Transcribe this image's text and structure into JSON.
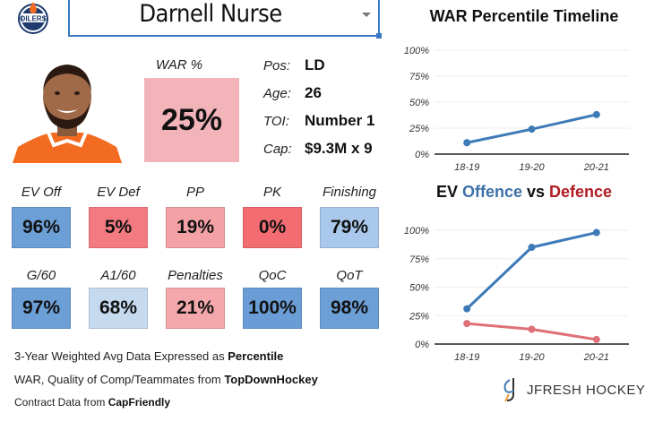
{
  "header": {
    "team_logo": "oilers-logo-icon",
    "player_select_value": "Darnell Nurse"
  },
  "player": {
    "photo": "player-headshot",
    "war_label": "WAR %",
    "war_value": "25%",
    "war_color": "#f2b4b8",
    "info": [
      {
        "key": "Pos:",
        "value": "LD"
      },
      {
        "key": "Age:",
        "value": "26"
      },
      {
        "key": "TOI:",
        "value": "Number 1"
      },
      {
        "key": "Cap:",
        "value": "$9.3M x 9"
      }
    ]
  },
  "tiles_row1": [
    {
      "label": "EV Off",
      "value": "96%",
      "color": "#6b9fd6"
    },
    {
      "label": "EV Def",
      "value": "5%",
      "color": "#f37a80"
    },
    {
      "label": "PP",
      "value": "19%",
      "color": "#f4a1a6"
    },
    {
      "label": "PK",
      "value": "0%",
      "color": "#f26c72"
    },
    {
      "label": "Finishing",
      "value": "79%",
      "color": "#a9c8eb"
    }
  ],
  "tiles_row2": [
    {
      "label": "G/60",
      "value": "97%",
      "color": "#6b9fd6"
    },
    {
      "label": "A1/60",
      "value": "68%",
      "color": "#c5d9ef"
    },
    {
      "label": "Penalties",
      "value": "21%",
      "color": "#f4a8ac"
    },
    {
      "label": "QoC",
      "value": "100%",
      "color": "#6a9dd6"
    },
    {
      "label": "QoT",
      "value": "98%",
      "color": "#6b9fd6"
    }
  ],
  "footer": {
    "line1_prefix": "3-Year Weighted Avg Data Expressed as ",
    "line1_bold": "Percentile",
    "line2_prefix": "WAR, Quality of Comp/Teammates from ",
    "line2_bold": "TopDownHockey",
    "line3_prefix": "Contract Data from ",
    "line3_bold": "CapFriendly"
  },
  "brand": {
    "logo": "jfresh-logo-icon",
    "text": "JFRESH HOCKEY"
  },
  "chart_data": [
    {
      "type": "line",
      "title": "WAR Percentile Timeline",
      "categories": [
        "18-19",
        "19-20",
        "20-21"
      ],
      "series": [
        {
          "name": "WAR",
          "values": [
            11,
            24,
            38
          ],
          "color": "#3d7ab8"
        }
      ],
      "yticks": [
        "0%",
        "25%",
        "50%",
        "75%",
        "100%"
      ],
      "ylim": [
        0,
        100
      ],
      "grid": true,
      "xlabel": "",
      "ylabel": ""
    },
    {
      "type": "line",
      "title_parts": [
        {
          "text": "EV ",
          "color": "#111111"
        },
        {
          "text": "Offence",
          "color": "#3d72a8"
        },
        {
          "text": " vs ",
          "color": "#111111"
        },
        {
          "text": "Defence",
          "color": "#b01c22"
        }
      ],
      "categories": [
        "18-19",
        "19-20",
        "20-21"
      ],
      "series": [
        {
          "name": "Offence",
          "values": [
            31,
            85,
            98
          ],
          "color": "#3d7ab8"
        },
        {
          "name": "Defence",
          "values": [
            18,
            13,
            4
          ],
          "color": "#e07078"
        }
      ],
      "yticks": [
        "0%",
        "25%",
        "50%",
        "75%",
        "100%"
      ],
      "ylim": [
        0,
        100
      ],
      "grid": true,
      "xlabel": "",
      "ylabel": ""
    }
  ]
}
